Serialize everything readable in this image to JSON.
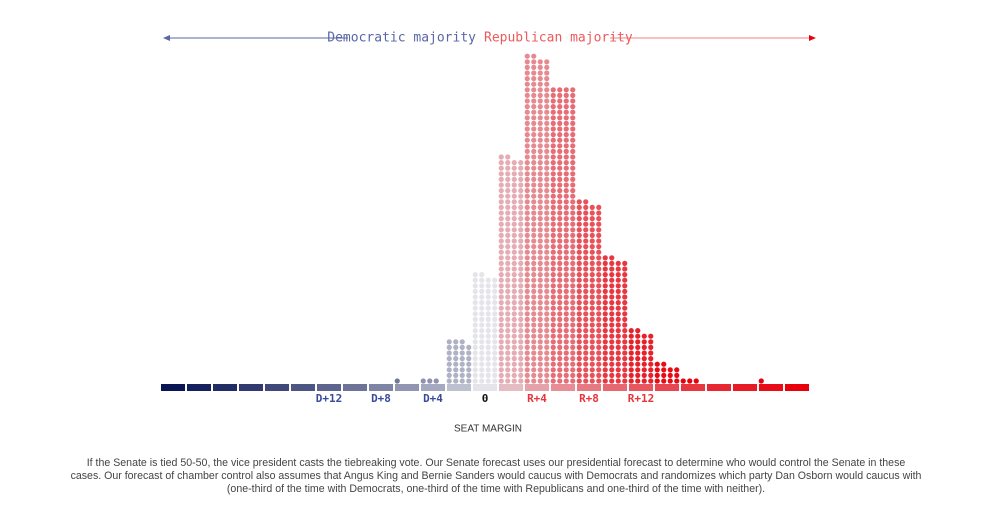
{
  "chart_data": {
    "type": "dot-histogram",
    "left_label": "Democratic majority",
    "right_label": "Republican majority",
    "x_axis_label": "SEAT MARGIN",
    "x": [
      -24,
      -22,
      -20,
      -18,
      -16,
      -14,
      -12,
      -10,
      -8,
      -6,
      -4,
      -2,
      0,
      2,
      4,
      6,
      8,
      10,
      12,
      14,
      16,
      18,
      20,
      22,
      24
    ],
    "values": [
      0,
      0,
      0,
      0,
      0,
      0,
      0,
      0,
      0,
      1,
      3,
      31,
      78,
      162,
      234,
      212,
      130,
      90,
      38,
      14,
      3,
      0,
      0,
      1,
      0
    ],
    "xlim": [
      -25,
      25
    ],
    "xticks": [
      {
        "value": -12,
        "label": "D+12"
      },
      {
        "value": -8,
        "label": "D+8"
      },
      {
        "value": -4,
        "label": "D+4"
      },
      0,
      {
        "value": 4,
        "label": "R+4"
      },
      {
        "value": 8,
        "label": "R+8"
      },
      {
        "value": 12,
        "label": "R+12"
      }
    ],
    "colors": {
      "democratic": "#0a1654",
      "neutral": "#e4e4ea",
      "republican": "#e8000b"
    },
    "footnote": [
      "If the Senate is tied 50-50, the vice president casts the tiebreaking vote. Our Senate forecast uses our presidential forecast to determine who would control the Senate in these",
      "cases. Our forecast of chamber control also assumes that Angus King and Bernie Sanders would caucus with Democrats and randomizes which party Dan Osborn would caucus with",
      "(one-third of the time with Democrats, one-third of the time with Republicans and one-third of the time with neither)."
    ]
  }
}
